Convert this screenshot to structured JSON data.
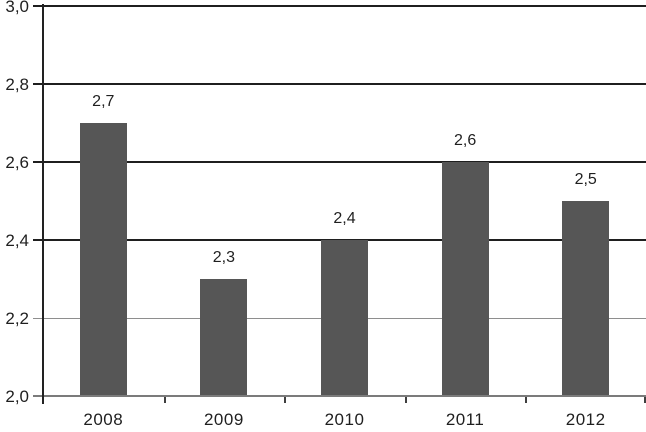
{
  "chart_data": {
    "type": "bar",
    "title": "",
    "categories": [
      "2008",
      "2009",
      "2010",
      "2011",
      "2012"
    ],
    "values": [
      2.7,
      2.3,
      2.4,
      2.6,
      2.5
    ],
    "value_labels": [
      "2,7",
      "2,3",
      "2,4",
      "2,6",
      "2,5"
    ],
    "xlabel": "",
    "ylabel": "",
    "ylim": [
      2.0,
      3.0
    ],
    "y_tick_step": 0.2,
    "y_ticks": [
      {
        "value": 3.0,
        "label": "3,0",
        "line": "dark"
      },
      {
        "value": 2.8,
        "label": "2,8",
        "line": "dark"
      },
      {
        "value": 2.6,
        "label": "2,6",
        "line": "dark"
      },
      {
        "value": 2.4,
        "label": "2,4",
        "line": "dark"
      },
      {
        "value": 2.2,
        "label": "2,2",
        "line": "light"
      },
      {
        "value": 2.0,
        "label": "2,0",
        "line": "baseline"
      }
    ],
    "grid": true,
    "legend_position": "none",
    "decimal_separator": ","
  },
  "style": {
    "background": "#ffffff",
    "bar_color": "#565656",
    "grid_color_dark": "#1f1f1f",
    "grid_color_light": "#8e8e8e",
    "baseline_color": "#7b7b7b",
    "axis_color": "#222222",
    "tick_color": "#3f3f3f",
    "text_color": "#1f1f1f"
  }
}
